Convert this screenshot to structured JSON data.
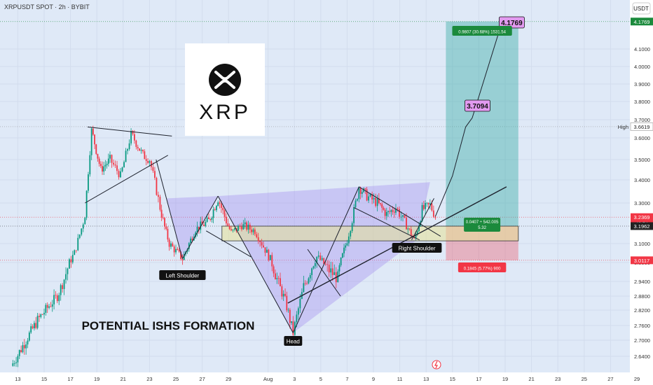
{
  "header": {
    "title": "XRPUSDT SPOT · 2h · BYBIT",
    "currency": "USDT"
  },
  "chart_data": {
    "type": "candlestick",
    "title": "POTENTIAL ISHS FORMATION",
    "y_axis": {
      "side": "right",
      "ticks": [
        "4.1000",
        "4.0000",
        "3.9000",
        "3.8000",
        "3.7000",
        "3.6000",
        "3.5000",
        "3.4000",
        "3.3000",
        "3.1000",
        "3.0000",
        "2.9400",
        "2.8800",
        "2.8200",
        "2.7600",
        "2.7000",
        "2.6400"
      ],
      "tick_values": [
        4.1,
        4.0,
        3.9,
        3.8,
        3.7,
        3.6,
        3.5,
        3.4,
        3.3,
        3.1,
        3.0,
        2.94,
        2.88,
        2.82,
        2.76,
        2.7,
        2.64
      ],
      "badges": [
        {
          "label": "4.1769",
          "value": 4.1769,
          "color": "#1b8a3c"
        },
        {
          "label": "3.6619",
          "value": 3.6619,
          "color": "#ffffff",
          "text_color": "#222222",
          "side_label": "High"
        },
        {
          "label": "3.2369",
          "value": 3.2369,
          "color": "#f23645",
          "sub": "42:54"
        },
        {
          "label": "3.1962",
          "value": 3.1962,
          "color": "#222222"
        },
        {
          "label": "3.0117",
          "value": 3.0117,
          "color": "#f23645"
        }
      ]
    },
    "x_axis": {
      "ticks": [
        "13",
        "15",
        "17",
        "19",
        "21",
        "23",
        "25",
        "27",
        "29",
        "Aug",
        "3",
        "5",
        "7",
        "9",
        "11",
        "13",
        "15",
        "17",
        "19",
        "21",
        "23",
        "25",
        "27",
        "29"
      ],
      "tick_positions": [
        0.5,
        2.5,
        4.5,
        6.5,
        8.5,
        10.5,
        12.5,
        14.5,
        16.5,
        19.5,
        21.5,
        23.5,
        25.5,
        27.5,
        29.5,
        31.5,
        33.5,
        35.5,
        37.5,
        39.5,
        41.5,
        43.5,
        45.5,
        47.5
      ]
    },
    "candles_key_points": [
      {
        "day": 0.0,
        "price": 2.6
      },
      {
        "day": 2.0,
        "price": 2.78
      },
      {
        "day": 3.5,
        "price": 2.88
      },
      {
        "day": 4.8,
        "price": 3.05
      },
      {
        "day": 5.6,
        "price": 3.25
      },
      {
        "day": 6.1,
        "price": 3.64
      },
      {
        "day": 6.8,
        "price": 3.45
      },
      {
        "day": 7.5,
        "price": 3.5
      },
      {
        "day": 8.3,
        "price": 3.42
      },
      {
        "day": 9.1,
        "price": 3.62
      },
      {
        "day": 10.0,
        "price": 3.52
      },
      {
        "day": 10.5,
        "price": 3.5
      },
      {
        "day": 11.3,
        "price": 3.28
      },
      {
        "day": 12.0,
        "price": 3.1
      },
      {
        "day": 13.0,
        "price": 3.02
      },
      {
        "day": 14.0,
        "price": 3.18
      },
      {
        "day": 15.0,
        "price": 3.22
      },
      {
        "day": 15.7,
        "price": 3.32
      },
      {
        "day": 16.7,
        "price": 3.16
      },
      {
        "day": 17.5,
        "price": 3.2
      },
      {
        "day": 18.5,
        "price": 3.17
      },
      {
        "day": 19.8,
        "price": 3.0
      },
      {
        "day": 20.8,
        "price": 2.86
      },
      {
        "day": 21.4,
        "price": 2.73
      },
      {
        "day": 22.2,
        "price": 2.92
      },
      {
        "day": 23.2,
        "price": 3.03
      },
      {
        "day": 24.0,
        "price": 2.98
      },
      {
        "day": 24.8,
        "price": 2.95
      },
      {
        "day": 25.5,
        "price": 3.12
      },
      {
        "day": 26.4,
        "price": 3.37
      },
      {
        "day": 27.0,
        "price": 3.33
      },
      {
        "day": 27.8,
        "price": 3.3
      },
      {
        "day": 28.5,
        "price": 3.25
      },
      {
        "day": 29.2,
        "price": 3.28
      },
      {
        "day": 30.0,
        "price": 3.2
      },
      {
        "day": 30.6,
        "price": 3.12
      },
      {
        "day": 31.2,
        "price": 3.27
      },
      {
        "day": 31.8,
        "price": 3.29
      },
      {
        "day": 32.2,
        "price": 3.24
      }
    ],
    "annotations": {
      "logo_text": "XRP",
      "left_shoulder": "Left Shoulder",
      "head": "Head",
      "right_shoulder": "Right Shoulder",
      "target1": "3.7094",
      "target2": "4.1769",
      "long_position": {
        "target_stats": "0.9807 (30.68%) 1531.54",
        "mid_stats_1": "0.0407 ÷ 542.005",
        "mid_stats_2": "5.32",
        "stop_stats": "0.1845 (5.77%) 900",
        "entry": 3.1962,
        "target": 4.1769,
        "stop": 3.0117,
        "start_day": 33.0,
        "end_day": 38.5
      }
    }
  }
}
